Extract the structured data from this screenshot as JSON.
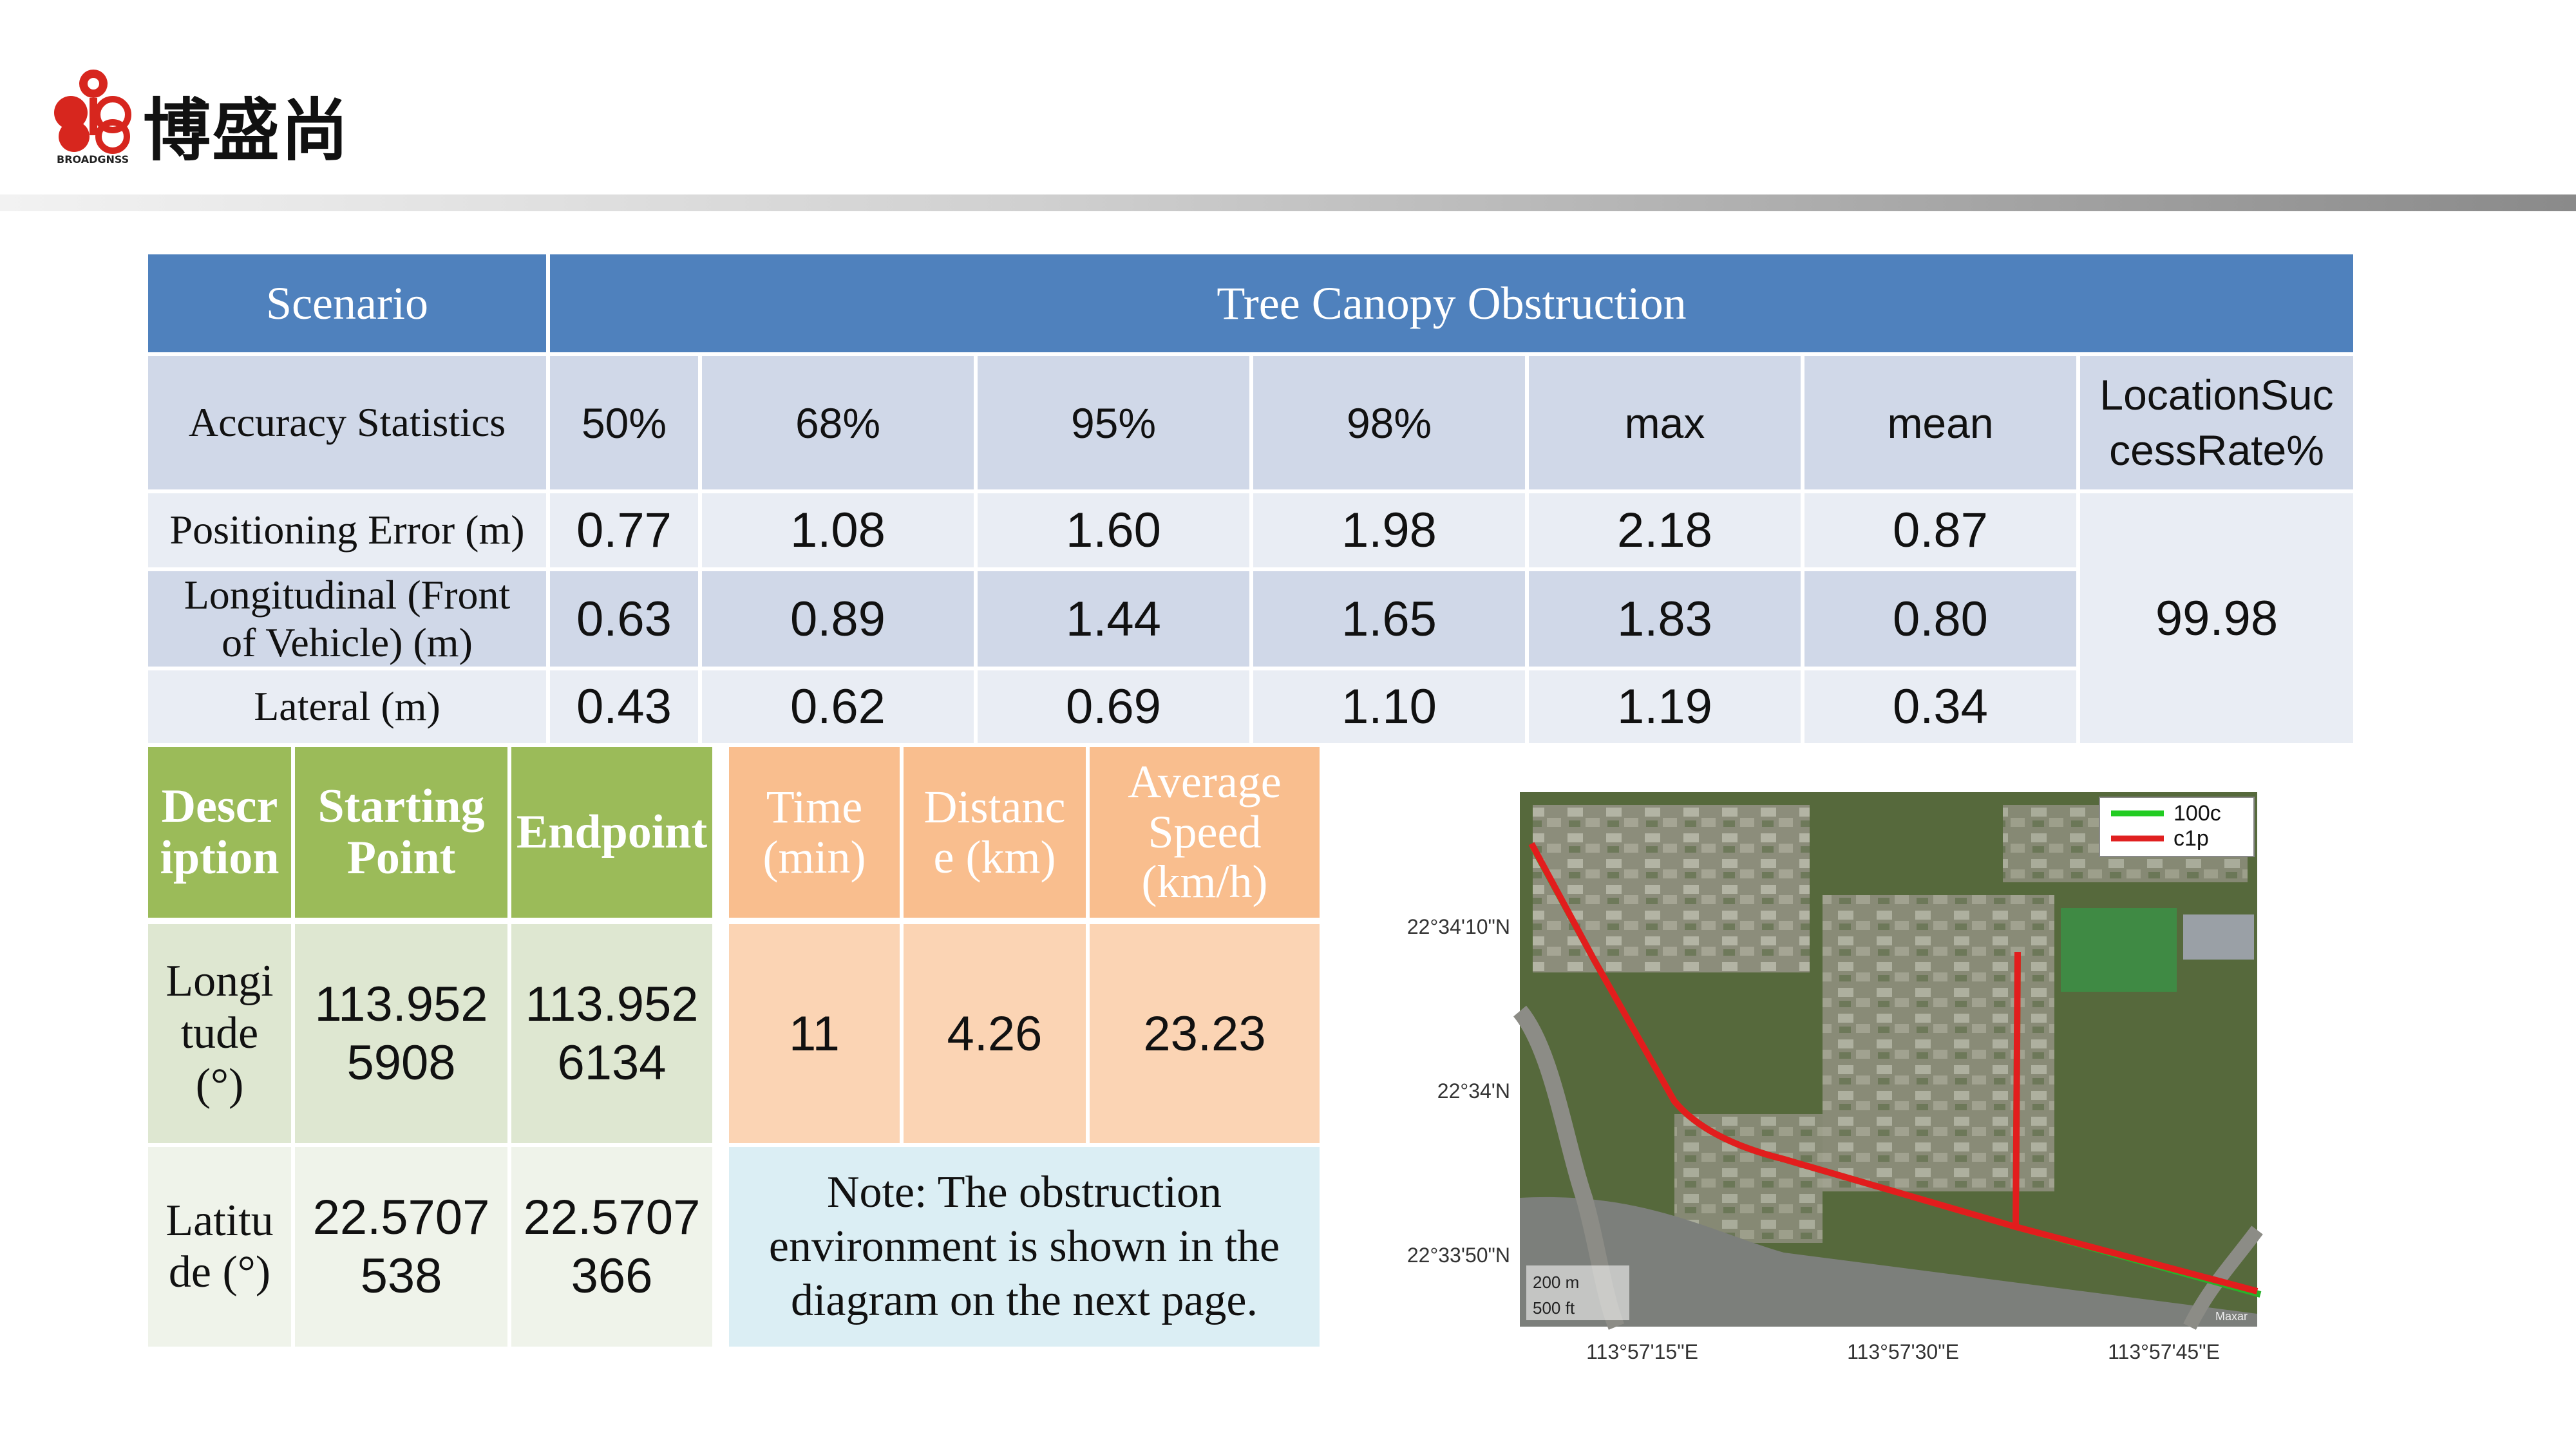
{
  "brand": {
    "name": "博盛尚",
    "sub": "BROADGNSS"
  },
  "stats_table": {
    "scenario_label": "Scenario",
    "scenario_value": "Tree Canopy Obstruction",
    "stat_label": "Accuracy Statistics",
    "columns": [
      "50%",
      "68%",
      "95%",
      "98%",
      "max",
      "mean"
    ],
    "success_label": "LocationSuccessRate%",
    "success_label_line1": "LocationSuc",
    "success_label_line2": "cessRate%",
    "success_value": "99.98",
    "rows": [
      {
        "label": "Positioning Error (m)",
        "values": [
          "0.77",
          "1.08",
          "1.60",
          "1.98",
          "2.18",
          "0.87"
        ]
      },
      {
        "label_line1": "Longitudinal (Front",
        "label_line2": "of Vehicle) (m)",
        "values": [
          "0.63",
          "0.89",
          "1.44",
          "1.65",
          "1.83",
          "0.80"
        ]
      },
      {
        "label": "Lateral (m)",
        "values": [
          "0.43",
          "0.62",
          "0.69",
          "1.10",
          "1.19",
          "0.34"
        ]
      }
    ]
  },
  "coords_table": {
    "headers": {
      "desc_1": "Descr",
      "desc_2": "iption",
      "start_1": "Starting",
      "start_2": "Point",
      "end": "Endpoint"
    },
    "longitude": {
      "l1": "Longi",
      "l2": "tude",
      "l3": "(°)",
      "start_1": "113.952",
      "start_2": "5908",
      "end_1": "113.952",
      "end_2": "6134"
    },
    "latitude": {
      "l1": "Latitu",
      "l2": "de (°)",
      "start_1": "22.5707",
      "start_2": "538",
      "end_1": "22.5707",
      "end_2": "366"
    }
  },
  "travel_table": {
    "headers": {
      "time_1": "Time",
      "time_2": "(min)",
      "dist_1": "Distanc",
      "dist_2": "e (km)",
      "speed_1": "Average",
      "speed_2": "Speed",
      "speed_3": "(km/h)"
    },
    "values": {
      "time": "11",
      "distance": "4.26",
      "speed": "23.23"
    },
    "note_1": "Note: The obstruction",
    "note_2": "environment is shown in the",
    "note_3": "diagram on the next page."
  },
  "map": {
    "legend": [
      {
        "label": "100c",
        "color": "#22cc22"
      },
      {
        "label": "c1p",
        "color": "#e02020"
      }
    ],
    "lat_labels": [
      "22°34'10\"N",
      "22°34'N",
      "22°33'50\"N"
    ],
    "lon_labels": [
      "113°57'15\"E",
      "113°57'30\"E",
      "113°57'45\"E"
    ],
    "scale_m": "200 m",
    "scale_ft": "500 ft",
    "attribution": "Maxar"
  }
}
